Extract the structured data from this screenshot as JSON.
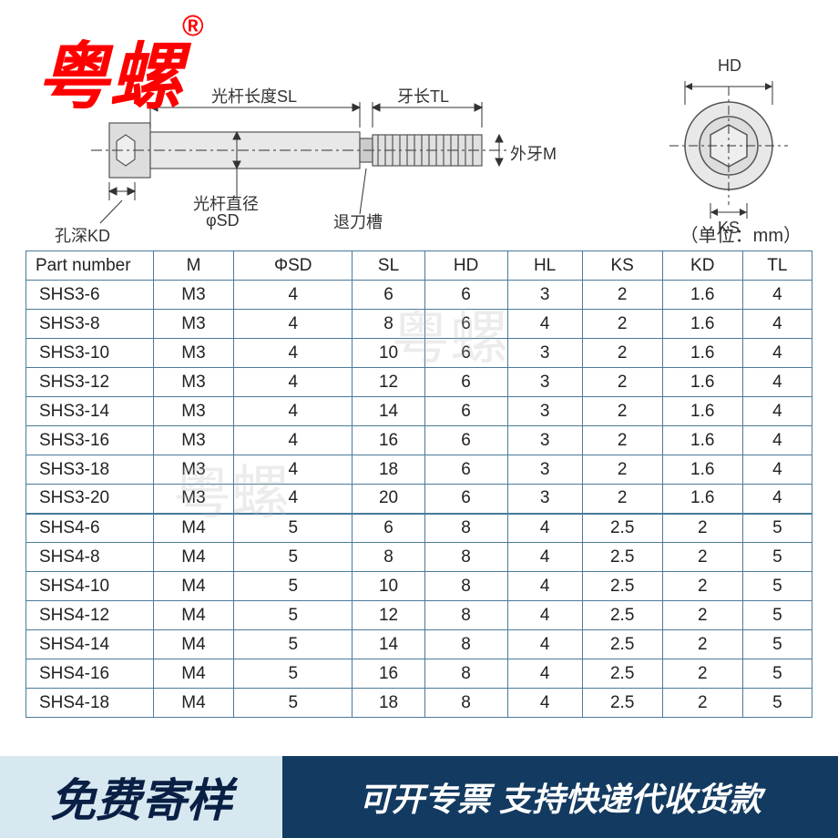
{
  "brand": {
    "name": "粤螺",
    "reg": "®"
  },
  "diagram": {
    "sl_label": "光杆长度SL",
    "tl_label": "牙长TL",
    "m_label": "外牙M",
    "sd_label_1": "光杆直径",
    "sd_label_2": "φSD",
    "groove_label": "退刀槽",
    "kd_label": "孔深KD",
    "hd_label": "HD",
    "ks_label": "KS"
  },
  "unit_text": "（单位：mm）",
  "table": {
    "headers": [
      "Part number",
      "M",
      "ΦSD",
      "SL",
      "HD",
      "HL",
      "KS",
      "KD",
      "TL"
    ],
    "rows": [
      [
        "SHS3-6",
        "M3",
        "4",
        "6",
        "6",
        "3",
        "2",
        "1.6",
        "4"
      ],
      [
        "SHS3-8",
        "M3",
        "4",
        "8",
        "6",
        "4",
        "2",
        "1.6",
        "4"
      ],
      [
        "SHS3-10",
        "M3",
        "4",
        "10",
        "6",
        "3",
        "2",
        "1.6",
        "4"
      ],
      [
        "SHS3-12",
        "M3",
        "4",
        "12",
        "6",
        "3",
        "2",
        "1.6",
        "4"
      ],
      [
        "SHS3-14",
        "M3",
        "4",
        "14",
        "6",
        "3",
        "2",
        "1.6",
        "4"
      ],
      [
        "SHS3-16",
        "M3",
        "4",
        "16",
        "6",
        "3",
        "2",
        "1.6",
        "4"
      ],
      [
        "SHS3-18",
        "M3",
        "4",
        "18",
        "6",
        "3",
        "2",
        "1.6",
        "4"
      ],
      [
        "SHS3-20",
        "M3",
        "4",
        "20",
        "6",
        "3",
        "2",
        "1.6",
        "4"
      ],
      [
        "SHS4-6",
        "M4",
        "5",
        "6",
        "8",
        "4",
        "2.5",
        "2",
        "5"
      ],
      [
        "SHS4-8",
        "M4",
        "5",
        "8",
        "8",
        "4",
        "2.5",
        "2",
        "5"
      ],
      [
        "SHS4-10",
        "M4",
        "5",
        "10",
        "8",
        "4",
        "2.5",
        "2",
        "5"
      ],
      [
        "SHS4-12",
        "M4",
        "5",
        "12",
        "8",
        "4",
        "2.5",
        "2",
        "5"
      ],
      [
        "SHS4-14",
        "M4",
        "5",
        "14",
        "8",
        "4",
        "2.5",
        "2",
        "5"
      ],
      [
        "SHS4-16",
        "M4",
        "5",
        "16",
        "8",
        "4",
        "2.5",
        "2",
        "5"
      ],
      [
        "SHS4-18",
        "M4",
        "5",
        "18",
        "8",
        "4",
        "2.5",
        "2",
        "5"
      ]
    ],
    "section_break_after": 8
  },
  "watermarks": [
    "粤螺",
    "粤螺"
  ],
  "footer": {
    "left": "免费寄样",
    "right": "可开专票 支持快递代收货款"
  },
  "colors": {
    "brand": "#ff0000",
    "table_border": "#4a7a9a",
    "footer_left_bg": "#d7e8f0",
    "footer_left_text": "#0a1f44",
    "footer_right_bg": "#133a60",
    "footer_right_text": "#ffffff"
  }
}
